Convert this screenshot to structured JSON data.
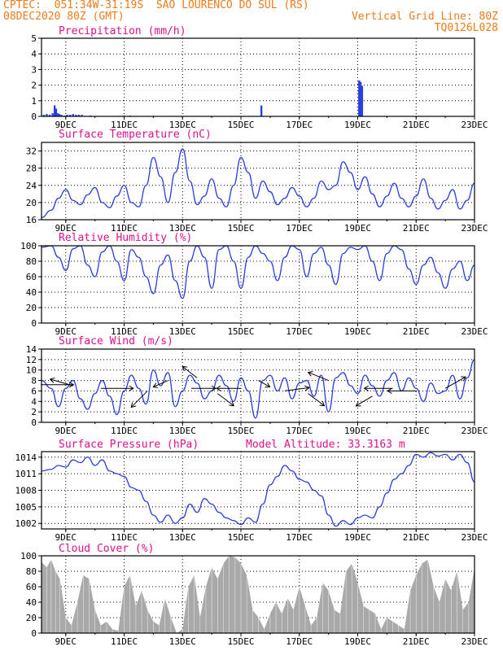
{
  "header": {
    "line1_left": "CPTEC:  051:34W-31:19S  SAO LOURENCO DO SUL (RS)",
    "line2_left": "08DEC2020 80Z (GMT)",
    "line2_right": "Vertical Grid Line: 80Z",
    "line3_right": "TQ0126L028"
  },
  "colors": {
    "header": "#f07a1a",
    "title": "#e0108a",
    "series": "#2a3fe0",
    "cloud": "#a9a9a9",
    "grid": "#000000"
  },
  "chart_data": [
    {
      "type": "bar",
      "title": "Precipitation (mm/h)",
      "ylim": [
        0,
        5
      ],
      "yticks": [
        "0",
        "1",
        "2",
        "3",
        "4",
        "5"
      ],
      "x_range": [
        8.17,
        23.0
      ],
      "xtick_values": [
        9,
        11,
        13,
        15,
        17,
        19,
        21,
        23
      ],
      "xtick_labels": [
        "9DEC",
        "11DEC",
        "13DEC",
        "15DEC",
        "17DEC",
        "19DEC",
        "21DEC",
        "23DEC"
      ],
      "x": [
        8.25,
        8.35,
        8.45,
        8.55,
        8.62,
        8.67,
        8.72,
        8.78,
        8.85,
        8.95,
        9.05,
        9.15,
        9.25,
        9.35,
        9.45,
        9.55,
        9.85,
        11.0,
        11.2,
        15.7,
        19.05,
        19.1,
        19.15
      ],
      "values": [
        0.1,
        0.15,
        0.1,
        0.2,
        0.7,
        0.5,
        0.2,
        0.15,
        0.1,
        0.05,
        0.1,
        0.1,
        0.15,
        0.1,
        0.1,
        0.1,
        0.05,
        0.05,
        0.05,
        0.7,
        2.3,
        2.2,
        1.95
      ]
    },
    {
      "type": "line",
      "title": "Surface Temperature (nC)",
      "ylim": [
        16,
        34
      ],
      "yticks": [
        "16",
        "20",
        "24",
        "28",
        "32"
      ],
      "x_range": [
        8.17,
        23.0
      ],
      "xtick_values": [
        9,
        11,
        13,
        15,
        17,
        19,
        21,
        23
      ],
      "xtick_labels": [
        "9DEC",
        "11DEC",
        "13DEC",
        "15DEC",
        "17DEC",
        "19DEC",
        "21DEC",
        "23DEC"
      ],
      "x": [
        8.17,
        8.5,
        8.75,
        9.0,
        9.25,
        9.5,
        9.75,
        10.0,
        10.25,
        10.5,
        10.75,
        11.0,
        11.25,
        11.5,
        11.75,
        12.0,
        12.25,
        12.5,
        12.75,
        13.0,
        13.25,
        13.5,
        13.75,
        14.0,
        14.25,
        14.5,
        14.75,
        15.0,
        15.25,
        15.5,
        15.75,
        16.0,
        16.25,
        16.5,
        16.75,
        17.0,
        17.25,
        17.5,
        17.75,
        18.0,
        18.25,
        18.5,
        18.75,
        19.0,
        19.25,
        19.5,
        19.75,
        20.0,
        20.25,
        20.5,
        20.75,
        21.0,
        21.25,
        21.5,
        21.75,
        22.0,
        22.25,
        22.5,
        22.75,
        23.0
      ],
      "values": [
        16.5,
        18.2,
        21.0,
        23.0,
        20.5,
        19.5,
        21.8,
        23.5,
        20.0,
        18.8,
        21.5,
        24.0,
        20.0,
        19.0,
        24.0,
        30.5,
        26.0,
        20.0,
        27.0,
        32.5,
        25.0,
        19.5,
        21.5,
        25.5,
        21.0,
        19.0,
        24.0,
        30.5,
        27.0,
        21.0,
        25.0,
        22.5,
        19.5,
        21.0,
        23.5,
        21.5,
        19.0,
        21.0,
        25.0,
        23.0,
        24.0,
        29.5,
        27.0,
        23.0,
        26.0,
        22.0,
        19.0,
        21.5,
        24.5,
        21.0,
        19.0,
        21.5,
        25.5,
        21.0,
        18.5,
        20.5,
        23.0,
        18.5,
        20.5,
        24.5
      ]
    },
    {
      "type": "line",
      "title": "Relative Humidity (%)",
      "ylim": [
        0,
        100
      ],
      "yticks": [
        "0",
        "20",
        "40",
        "60",
        "80",
        "100"
      ],
      "x_range": [
        8.17,
        23.0
      ],
      "xtick_values": [
        9,
        11,
        13,
        15,
        17,
        19,
        21,
        23
      ],
      "xtick_labels": [
        "9DEC",
        "11DEC",
        "13DEC",
        "15DEC",
        "17DEC",
        "19DEC",
        "21DEC",
        "23DEC"
      ],
      "x": [
        8.17,
        8.5,
        8.75,
        9.0,
        9.25,
        9.5,
        9.75,
        10.0,
        10.25,
        10.5,
        10.75,
        11.0,
        11.25,
        11.5,
        11.75,
        12.0,
        12.25,
        12.5,
        12.75,
        13.0,
        13.25,
        13.5,
        13.75,
        14.0,
        14.25,
        14.5,
        14.75,
        15.0,
        15.25,
        15.5,
        15.75,
        16.0,
        16.25,
        16.5,
        16.75,
        17.0,
        17.25,
        17.5,
        17.75,
        18.0,
        18.25,
        18.5,
        18.75,
        19.0,
        19.25,
        19.5,
        19.75,
        20.0,
        20.25,
        20.5,
        20.75,
        21.0,
        21.25,
        21.5,
        21.75,
        22.0,
        22.25,
        22.5,
        22.75,
        23.0
      ],
      "values": [
        98,
        100,
        85,
        68,
        96,
        100,
        75,
        60,
        92,
        100,
        80,
        55,
        95,
        85,
        60,
        38,
        75,
        88,
        55,
        32,
        80,
        100,
        85,
        45,
        95,
        100,
        80,
        45,
        85,
        100,
        90,
        80,
        55,
        85,
        100,
        95,
        60,
        90,
        98,
        75,
        50,
        90,
        98,
        95,
        100,
        80,
        55,
        90,
        100,
        95,
        70,
        50,
        75,
        85,
        65,
        45,
        70,
        80,
        55,
        75
      ]
    },
    {
      "type": "line",
      "title": "Surface Wind (m/s)",
      "ylim": [
        0,
        14
      ],
      "yticks": [
        "0",
        "2",
        "4",
        "6",
        "8",
        "10",
        "12",
        "14"
      ],
      "x_range": [
        8.17,
        23.0
      ],
      "xtick_values": [
        9,
        11,
        13,
        15,
        17,
        19,
        21,
        23
      ],
      "xtick_labels": [
        "9DEC",
        "11DEC",
        "13DEC",
        "15DEC",
        "17DEC",
        "19DEC",
        "21DEC",
        "23DEC"
      ],
      "x": [
        8.17,
        8.5,
        8.75,
        9.0,
        9.25,
        9.5,
        9.75,
        10.0,
        10.25,
        10.5,
        10.75,
        11.0,
        11.25,
        11.5,
        11.75,
        12.0,
        12.25,
        12.5,
        12.75,
        13.0,
        13.25,
        13.5,
        13.75,
        14.0,
        14.25,
        14.5,
        14.75,
        15.0,
        15.25,
        15.5,
        15.75,
        16.0,
        16.25,
        16.5,
        16.75,
        17.0,
        17.25,
        17.5,
        17.75,
        18.0,
        18.25,
        18.5,
        18.75,
        19.0,
        19.25,
        19.5,
        19.75,
        20.0,
        20.25,
        20.5,
        20.75,
        21.0,
        21.25,
        21.5,
        21.75,
        22.0,
        22.25,
        22.5,
        22.75,
        23.0
      ],
      "values": [
        8.0,
        6.5,
        3.0,
        6.5,
        8.0,
        4.5,
        2.5,
        5.5,
        8.0,
        5.0,
        1.5,
        6.0,
        9.0,
        6.5,
        3.5,
        10.0,
        7.0,
        9.5,
        3.0,
        6.0,
        9.0,
        7.5,
        4.5,
        6.0,
        9.0,
        7.0,
        4.0,
        8.5,
        6.0,
        0.8,
        8.0,
        9.0,
        6.0,
        8.5,
        4.5,
        7.5,
        8.0,
        5.0,
        9.0,
        2.0,
        8.5,
        9.5,
        7.0,
        5.5,
        9.0,
        7.0,
        5.0,
        8.0,
        9.5,
        6.0,
        8.5,
        6.5,
        4.0,
        7.5,
        5.5,
        6.0,
        9.0,
        4.5,
        8.5,
        12.0
      ]
    },
    {
      "type": "line",
      "title": "Surface Pressure (hPa)",
      "annotation": "Model Altitude: 33.3163 m",
      "ylim": [
        1001,
        1015
      ],
      "yticks": [
        "1002",
        "1005",
        "1008",
        "1011",
        "1014"
      ],
      "x_range": [
        8.17,
        23.0
      ],
      "xtick_values": [
        9,
        11,
        13,
        15,
        17,
        19,
        21,
        23
      ],
      "xtick_labels": [
        "9DEC",
        "11DEC",
        "13DEC",
        "15DEC",
        "17DEC",
        "19DEC",
        "21DEC",
        "23DEC"
      ],
      "x": [
        8.17,
        8.5,
        8.75,
        9.0,
        9.25,
        9.5,
        9.75,
        10.0,
        10.25,
        10.5,
        10.75,
        11.0,
        11.25,
        11.5,
        11.75,
        12.0,
        12.25,
        12.5,
        12.75,
        13.0,
        13.25,
        13.5,
        13.75,
        14.0,
        14.25,
        14.5,
        14.75,
        15.0,
        15.25,
        15.5,
        15.75,
        16.0,
        16.25,
        16.5,
        16.75,
        17.0,
        17.25,
        17.5,
        17.75,
        18.0,
        18.25,
        18.5,
        18.75,
        19.0,
        19.25,
        19.5,
        19.75,
        20.0,
        20.25,
        20.5,
        20.75,
        21.0,
        21.25,
        21.5,
        21.75,
        22.0,
        22.25,
        22.5,
        22.75,
        23.0
      ],
      "values": [
        1011.5,
        1011.8,
        1012.5,
        1012.2,
        1013.5,
        1013.0,
        1014.0,
        1012.5,
        1013.5,
        1011.5,
        1011.0,
        1010.5,
        1008.5,
        1008.0,
        1006.0,
        1003.5,
        1002.2,
        1003.5,
        1002.0,
        1003.0,
        1005.5,
        1004.0,
        1006.5,
        1005.5,
        1004.0,
        1003.0,
        1002.5,
        1001.8,
        1003.0,
        1002.2,
        1005.5,
        1009.0,
        1010.5,
        1012.5,
        1011.5,
        1010.0,
        1009.5,
        1008.0,
        1007.0,
        1003.5,
        1001.5,
        1002.5,
        1001.8,
        1003.0,
        1003.5,
        1003.0,
        1005.0,
        1007.5,
        1010.0,
        1011.0,
        1012.5,
        1014.5,
        1014.0,
        1014.8,
        1014.2,
        1014.5,
        1013.5,
        1014.5,
        1013.0,
        1009.5
      ]
    },
    {
      "type": "area",
      "title": "Cloud Cover (%)",
      "ylim": [
        0,
        100
      ],
      "yticks": [
        "0",
        "20",
        "40",
        "60",
        "80",
        "100"
      ],
      "x_range": [
        8.17,
        23.0
      ],
      "xtick_values": [
        9,
        11,
        13,
        15,
        17,
        19,
        21,
        23
      ],
      "xtick_labels": [
        "9DEC",
        "11DEC",
        "13DEC",
        "15DEC",
        "17DEC",
        "19DEC",
        "21DEC",
        "23DEC"
      ],
      "x": [
        8.17,
        8.35,
        8.5,
        8.65,
        8.8,
        9.0,
        9.2,
        9.4,
        9.6,
        9.8,
        10.0,
        10.2,
        10.4,
        10.6,
        10.8,
        11.0,
        11.2,
        11.4,
        11.6,
        11.8,
        12.0,
        12.2,
        12.4,
        12.6,
        12.8,
        13.0,
        13.2,
        13.4,
        13.6,
        13.8,
        14.0,
        14.2,
        14.4,
        14.6,
        14.8,
        15.0,
        15.2,
        15.4,
        15.6,
        15.8,
        16.0,
        16.2,
        16.4,
        16.6,
        16.8,
        17.0,
        17.2,
        17.4,
        17.6,
        17.8,
        18.0,
        18.2,
        18.4,
        18.6,
        18.8,
        19.0,
        19.2,
        19.4,
        19.6,
        19.8,
        20.0,
        20.2,
        20.4,
        20.6,
        20.8,
        21.0,
        21.2,
        21.4,
        21.6,
        21.8,
        22.0,
        22.2,
        22.4,
        22.6,
        22.8,
        23.0
      ],
      "values": [
        92,
        85,
        95,
        80,
        70,
        20,
        10,
        40,
        75,
        70,
        30,
        10,
        15,
        5,
        3,
        60,
        75,
        35,
        55,
        30,
        15,
        10,
        45,
        20,
        0,
        5,
        60,
        75,
        20,
        60,
        85,
        70,
        90,
        100,
        98,
        90,
        75,
        30,
        20,
        5,
        25,
        40,
        25,
        45,
        30,
        60,
        35,
        10,
        20,
        65,
        55,
        30,
        25,
        80,
        90,
        65,
        35,
        30,
        25,
        5,
        20,
        15,
        10,
        5,
        55,
        75,
        90,
        95,
        60,
        40,
        70,
        55,
        80,
        30,
        40,
        85
      ]
    }
  ],
  "wind_arrows": [
    {
      "x": 8.15,
      "y": 7.2,
      "dx": 40,
      "dy": 0
    },
    {
      "x": 9.25,
      "y": 7.0,
      "dx": -28,
      "dy": -8
    },
    {
      "x": 10.2,
      "y": 6.5,
      "dx": 40,
      "dy": 0
    },
    {
      "x": 11.8,
      "y": 6.0,
      "dx": -20,
      "dy": 20
    },
    {
      "x": 12.5,
      "y": 8.0,
      "dx": -18,
      "dy": 8
    },
    {
      "x": 13.3,
      "y": 6.5,
      "dx": 30,
      "dy": 0
    },
    {
      "x": 13.5,
      "y": 8.5,
      "dx": -18,
      "dy": -14
    },
    {
      "x": 14.2,
      "y": 5.5,
      "dx": 20,
      "dy": 15
    },
    {
      "x": 15.0,
      "y": 6.5,
      "dx": -30,
      "dy": 0
    },
    {
      "x": 15.6,
      "y": 8.0,
      "dx": 14,
      "dy": 8
    },
    {
      "x": 16.5,
      "y": 6.0,
      "dx": 30,
      "dy": -4
    },
    {
      "x": 17.3,
      "y": 5.5,
      "dx": 20,
      "dy": 15
    },
    {
      "x": 18.0,
      "y": 8.0,
      "dx": -25,
      "dy": -10
    },
    {
      "x": 19.5,
      "y": 5.0,
      "dx": -20,
      "dy": 12
    },
    {
      "x": 20.2,
      "y": 6.5,
      "dx": -35,
      "dy": 0
    },
    {
      "x": 21.0,
      "y": 6.0,
      "dx": -35,
      "dy": 0
    },
    {
      "x": 22.0,
      "y": 6.5,
      "dx": 25,
      "dy": -14
    }
  ]
}
